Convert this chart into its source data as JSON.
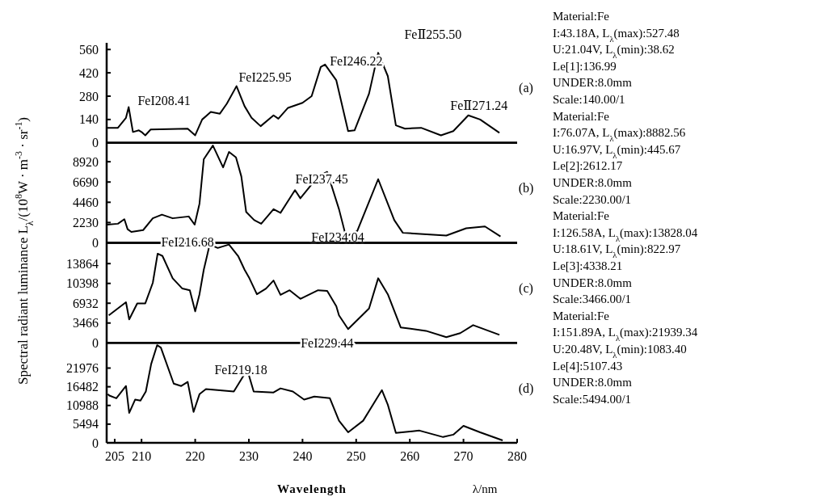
{
  "chart_data": [
    {
      "type": "line",
      "title": "(a)",
      "subtitle": "Material:Fe\nI:43.18A, L$_{λ}$(max):527.48\nU:21.04V, L$_{λ}$(min):38.62\nLe[1]:136.99\nUNDER:8.0mm\nScale:140.00/1",
      "ylabel": "Spectral radiant luminance L$_{λ}$/(10$^{8}$W · m$^{-3}$ · sr$^{-1}$)",
      "xlim": [
        203.5,
        280
      ],
      "ylim": [
        0,
        600
      ],
      "yticks": [
        0,
        140,
        280,
        420,
        560
      ],
      "tick_labels": "y",
      "series": [
        {
          "color": "#000000",
          "x": [
            203.6,
            205.6,
            207.1,
            207.6,
            208.1,
            208.4,
            209.5,
            210,
            210.7,
            211.7,
            218.6,
            220,
            221.3,
            222.9,
            224.6,
            225.9,
            227.7,
            229.2,
            230.5,
            232.2,
            234.6,
            235.5,
            237.3,
            240,
            241.7,
            243.4,
            244.2,
            246.3,
            248.5,
            249.7,
            252.4,
            254.1,
            255.9,
            257.4,
            259.1,
            262.1,
            265.8,
            268.1,
            270.9,
            273.1,
            276.7
          ],
          "values": [
            90,
            90,
            150,
            215,
            120,
            65,
            75,
            65,
            45,
            80,
            85,
            45,
            140,
            185,
            175,
            235,
            340,
            220,
            150,
            100,
            165,
            145,
            210,
            240,
            280,
            455,
            470,
            375,
            70,
            75,
            295,
            540,
            400,
            105,
            85,
            90,
            45,
            70,
            165,
            140,
            60
          ]
        }
      ],
      "annotations": [
        "FeI208.41",
        "FeI225.95",
        "FeI246.22",
        "FeⅡ255.50",
        "FeⅡ271.24"
      ]
    },
    {
      "type": "line",
      "title": "(b)",
      "subtitle": "Material:Fe\nI:76.07A, L$_{λ}$(max):8882.56\nU:16.97V, L$_{λ}$(min):445.67\nLe[2]:2612.17\nUNDER:8.0mm\nScale:2230.00/1",
      "xlim": [
        203.5,
        280
      ],
      "ylim": [
        0,
        11000
      ],
      "yticks": [
        0,
        2230,
        4460,
        6690,
        8920
      ],
      "tick_labels": "y",
      "series": [
        {
          "color": "#000000",
          "x": [
            203.6,
            205.6,
            206.8,
            207.4,
            208.1,
            210.3,
            212.1,
            213.8,
            215.8,
            218.8,
            219.9,
            220.8,
            221.6,
            223.3,
            225.2,
            226.3,
            227.6,
            228.6,
            229.5,
            231,
            232.3,
            234.6,
            235.9,
            238.6,
            239.6,
            242.9,
            244.6,
            246.8,
            248.1,
            250.2,
            254.1,
            257.1,
            258.7,
            266.8,
            270.5,
            274,
            276.9
          ],
          "values": [
            2000,
            2100,
            2600,
            1500,
            1200,
            1400,
            2700,
            3100,
            2700,
            2900,
            2000,
            4300,
            9200,
            10700,
            8300,
            10000,
            9400,
            7300,
            3400,
            2500,
            2100,
            3700,
            3300,
            5800,
            4900,
            7300,
            7800,
            3700,
            700,
            1300,
            7000,
            2500,
            1100,
            800,
            1600,
            1800,
            700
          ]
        }
      ],
      "annotations": [
        "FeI237.45",
        "FeI234.04"
      ]
    },
    {
      "type": "line",
      "title": "(c)",
      "subtitle": "Material:Fe\nI:126.58A, L$_{λ}$(max):13828.04\nU:18.61V, L$_{λ}$(min):822.97\nLe[3]:4338.21\nUNDER:8.0mm\nScale:3466.00/1",
      "xlim": [
        203.5,
        280
      ],
      "ylim": [
        0,
        17500
      ],
      "yticks": [
        0,
        3466,
        6932,
        10398,
        13864
      ],
      "tick_labels": "y",
      "series": [
        {
          "color": "#000000",
          "x": [
            203.9,
            207.1,
            207.7,
            209.2,
            210.7,
            212.1,
            213,
            213.9,
            215.8,
            217.6,
            219,
            220,
            220.8,
            221.6,
            222.7,
            224.2,
            226.3,
            228,
            229.2,
            230.1,
            231.5,
            233.2,
            234.6,
            235.9,
            237.6,
            239.6,
            242.9,
            244.6,
            246.3,
            246.8,
            248.5,
            252.4,
            254.1,
            255.9,
            258.3,
            263,
            266.8,
            269.4,
            271.8,
            276.7
          ],
          "values": [
            4800,
            7100,
            4100,
            6900,
            6900,
            10500,
            15600,
            15200,
            11300,
            9500,
            9200,
            5500,
            8500,
            12800,
            17200,
            16600,
            17200,
            15200,
            12800,
            11300,
            8500,
            9500,
            10900,
            8400,
            9200,
            7700,
            9200,
            9100,
            6400,
            4800,
            2400,
            6000,
            11300,
            8500,
            2700,
            2100,
            1000,
            1700,
            3100,
            1400
          ]
        }
      ],
      "annotations": [
        "FeI216.68"
      ]
    },
    {
      "type": "line",
      "title": "(d)",
      "subtitle": "Material:Fe\nI:151.89A, L$_{λ}$(max):21939.34\nU:20.48V, L$_{λ}$(min):1083.40\nLe[4]:5107.43\nUNDER:8.0mm\nScale:5494.00/1",
      "xlabel": "Wavelength",
      "xlim": [
        203.5,
        280
      ],
      "xticks": [
        205,
        210,
        220,
        230,
        240,
        250,
        260,
        270,
        280
      ],
      "ylim": [
        0,
        29400
      ],
      "yticks": [
        0,
        5494,
        10988,
        16482,
        21976
      ],
      "series": [
        {
          "color": "#000000",
          "x": [
            203.7,
            204,
            205.3,
            207.1,
            207.7,
            208.8,
            209.8,
            210.8,
            211.8,
            212.9,
            213.6,
            216,
            217.4,
            218.6,
            219.7,
            220.8,
            222,
            227.2,
            229.7,
            230.9,
            234.6,
            235.9,
            238.2,
            240.3,
            242.2,
            245.1,
            246.8,
            248.5,
            251.3,
            254.8,
            255.9,
            257.4,
            261.8,
            266.2,
            268.1,
            270,
            273.1,
            277.3
          ],
          "values": [
            14300,
            13900,
            13100,
            16700,
            8800,
            12700,
            12400,
            15100,
            23200,
            28700,
            28000,
            17400,
            16700,
            17900,
            9100,
            14300,
            15800,
            15100,
            21500,
            15100,
            14800,
            16000,
            15100,
            12700,
            13600,
            13100,
            6500,
            3100,
            6500,
            15500,
            11200,
            2900,
            3600,
            1700,
            2400,
            5000,
            3100,
            700
          ]
        }
      ],
      "annotations": [
        "FeI229.44",
        "FeI219.18",
        {
          "text": "λ/nm"
        }
      ]
    }
  ]
}
